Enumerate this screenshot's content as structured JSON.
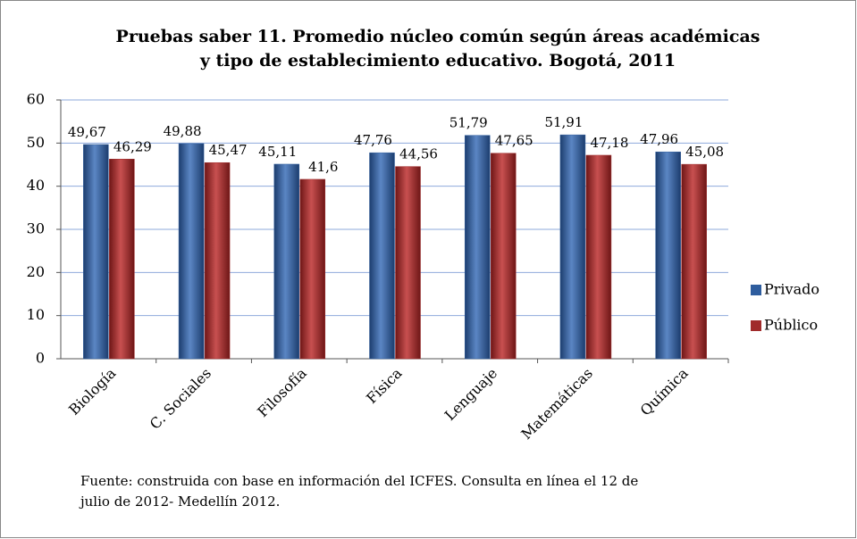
{
  "chart_data": {
    "type": "bar",
    "title": [
      "Pruebas saber 11. Promedio núcleo común según áreas académicas",
      "y tipo de establecimiento educativo. Bogotá, 2011"
    ],
    "categories": [
      "Biología",
      "C. Sociales",
      "Filosofía",
      "Física",
      "Lenguaje",
      "Matemáticas",
      "Química"
    ],
    "series": [
      {
        "name": "Privado",
        "color": "#2e5d9e",
        "values": [
          49.67,
          49.88,
          45.11,
          47.76,
          51.79,
          51.91,
          47.96
        ],
        "value_labels": [
          "49,67",
          "49,88",
          "45,11",
          "47,76",
          "51,79",
          "51,91",
          "47,96"
        ]
      },
      {
        "name": "Público",
        "color": "#a02b2b",
        "values": [
          46.29,
          45.47,
          41.6,
          44.56,
          47.65,
          47.18,
          45.08
        ],
        "value_labels": [
          "46,29",
          "45,47",
          "41,6",
          "44,56",
          "47,65",
          "47,18",
          "45,08"
        ]
      }
    ],
    "ylim": [
      0,
      60
    ],
    "yticks": [
      0,
      10,
      20,
      30,
      40,
      50,
      60
    ],
    "grid": true,
    "legend": "right",
    "source": [
      "Fuente: construida con base en  información del ICFES. Consulta en línea el 12 de",
      "julio de 2012- Medellín 2012."
    ]
  }
}
